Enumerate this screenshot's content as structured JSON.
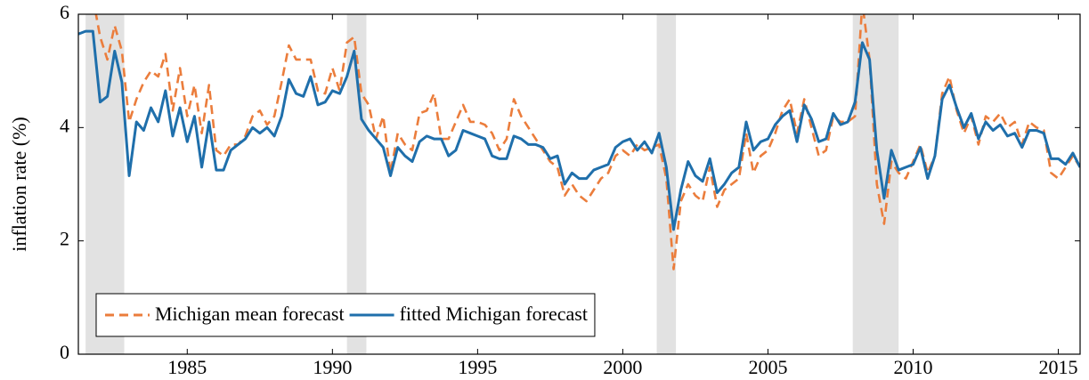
{
  "chart_data": {
    "type": "line",
    "ylabel": "inflation rate (%)",
    "xlim": [
      1981.25,
      2015.75
    ],
    "ylim": [
      0,
      6
    ],
    "xticks": [
      1985,
      1990,
      1995,
      2000,
      2005,
      2010,
      2015
    ],
    "yticks": [
      0,
      2,
      4,
      6
    ],
    "recessions": [
      [
        1981.5,
        1982.83
      ],
      [
        1990.5,
        1991.17
      ],
      [
        2001.17,
        2001.83
      ],
      [
        2007.92,
        2009.5
      ]
    ],
    "recession_color": "#e2e2e2",
    "legend": "lower left",
    "x": [
      1981.25,
      1981.5,
      1981.75,
      1982,
      1982.25,
      1982.5,
      1982.75,
      1983,
      1983.25,
      1983.5,
      1983.75,
      1984,
      1984.25,
      1984.5,
      1984.75,
      1985,
      1985.25,
      1985.5,
      1985.75,
      1986,
      1986.25,
      1986.5,
      1986.75,
      1987,
      1987.25,
      1987.5,
      1987.75,
      1988,
      1988.25,
      1988.5,
      1988.75,
      1989,
      1989.25,
      1989.5,
      1989.75,
      1990,
      1990.25,
      1990.5,
      1990.75,
      1991,
      1991.25,
      1991.5,
      1991.75,
      1992,
      1992.25,
      1992.5,
      1992.75,
      1993,
      1993.25,
      1993.5,
      1993.75,
      1994,
      1994.25,
      1994.5,
      1994.75,
      1995,
      1995.25,
      1995.5,
      1995.75,
      1996,
      1996.25,
      1996.5,
      1996.75,
      1997,
      1997.25,
      1997.5,
      1997.75,
      1998,
      1998.25,
      1998.5,
      1998.75,
      1999,
      1999.25,
      1999.5,
      1999.75,
      2000,
      2000.25,
      2000.5,
      2000.75,
      2001,
      2001.25,
      2001.5,
      2001.75,
      2002,
      2002.25,
      2002.5,
      2002.75,
      2003,
      2003.25,
      2003.5,
      2003.75,
      2004,
      2004.25,
      2004.5,
      2004.75,
      2005,
      2005.25,
      2005.5,
      2005.75,
      2006,
      2006.25,
      2006.5,
      2006.75,
      2007,
      2007.25,
      2007.5,
      2007.75,
      2008,
      2008.25,
      2008.5,
      2008.75,
      2009,
      2009.25,
      2009.5,
      2009.75,
      2010,
      2010.25,
      2010.5,
      2010.75,
      2011,
      2011.25,
      2011.5,
      2011.75,
      2012,
      2012.25,
      2012.5,
      2012.75,
      2013,
      2013.25,
      2013.5,
      2013.75,
      2014,
      2014.25,
      2014.5,
      2014.75,
      2015,
      2015.25,
      2015.5,
      2015.75
    ],
    "series": [
      {
        "name": "Michigan mean forecast",
        "color": "#eb7d3c",
        "dashed": true,
        "values": [
          6.6,
          6.8,
          6.3,
          5.6,
          5.2,
          5.8,
          5.35,
          4.1,
          4.5,
          4.8,
          5,
          4.9,
          5.3,
          4.3,
          5.05,
          4.2,
          4.75,
          3.9,
          4.75,
          3.6,
          3.5,
          3.7,
          3.7,
          3.85,
          4.2,
          4.3,
          4.05,
          4.2,
          4.8,
          5.45,
          5.2,
          5.2,
          5.2,
          4.65,
          4.6,
          5.05,
          4.65,
          5.5,
          5.6,
          4.6,
          4.4,
          3.8,
          4.2,
          3.2,
          3.9,
          3.7,
          3.6,
          4.25,
          4.3,
          4.6,
          3.8,
          3.8,
          4.1,
          4.4,
          4.1,
          4.1,
          4.05,
          3.9,
          3.6,
          3.8,
          4.5,
          4.2,
          4,
          3.8,
          3.6,
          3.4,
          3.3,
          2.8,
          3,
          2.8,
          2.7,
          2.9,
          3.1,
          3.2,
          3.5,
          3.6,
          3.5,
          3.7,
          3.6,
          3.65,
          3.7,
          3.1,
          1.5,
          2.7,
          3,
          2.8,
          2.7,
          3.3,
          2.6,
          2.9,
          3,
          3.1,
          3.9,
          3.2,
          3.5,
          3.6,
          3.9,
          4.3,
          4.5,
          3.9,
          4.5,
          4,
          3.5,
          3.6,
          4.2,
          4.1,
          4.1,
          4.2,
          6.2,
          5.2,
          3,
          2.3,
          3.4,
          3.2,
          3.1,
          3.4,
          3.7,
          3.2,
          3.5,
          4.6,
          4.9,
          4.3,
          3.9,
          4.2,
          3.7,
          4.2,
          4.1,
          4.25,
          4,
          4.1,
          3.7,
          4.1,
          4,
          3.95,
          3.2,
          3.1,
          3.3,
          3.5,
          3.3
        ]
      },
      {
        "name": "fitted Michigan forecast",
        "color": "#1f6fab",
        "dashed": false,
        "values": [
          5.65,
          5.7,
          5.7,
          4.45,
          4.55,
          5.35,
          4.8,
          3.15,
          4.1,
          3.95,
          4.35,
          4.1,
          4.65,
          3.85,
          4.35,
          3.75,
          4.2,
          3.3,
          4.1,
          3.25,
          3.25,
          3.6,
          3.7,
          3.8,
          4,
          3.9,
          4,
          3.85,
          4.2,
          4.85,
          4.6,
          4.55,
          4.9,
          4.4,
          4.45,
          4.65,
          4.6,
          4.9,
          5.35,
          4.15,
          3.95,
          3.8,
          3.65,
          3.15,
          3.65,
          3.5,
          3.4,
          3.75,
          3.85,
          3.8,
          3.8,
          3.5,
          3.6,
          3.95,
          3.9,
          3.85,
          3.8,
          3.5,
          3.45,
          3.45,
          3.85,
          3.8,
          3.7,
          3.7,
          3.65,
          3.45,
          3.5,
          3,
          3.2,
          3.1,
          3.1,
          3.25,
          3.3,
          3.35,
          3.65,
          3.75,
          3.8,
          3.6,
          3.75,
          3.55,
          3.9,
          3.3,
          2.2,
          2.9,
          3.4,
          3.15,
          3.05,
          3.45,
          2.85,
          3,
          3.2,
          3.3,
          4.1,
          3.6,
          3.75,
          3.8,
          4.05,
          4.2,
          4.3,
          3.75,
          4.4,
          4.15,
          3.75,
          3.8,
          4.25,
          4.05,
          4.1,
          4.45,
          5.5,
          5.2,
          3.6,
          2.75,
          3.6,
          3.25,
          3.3,
          3.35,
          3.65,
          3.1,
          3.5,
          4.5,
          4.75,
          4.35,
          4,
          4.25,
          3.8,
          4.1,
          3.95,
          4.05,
          3.85,
          3.9,
          3.65,
          3.95,
          3.95,
          3.9,
          3.45,
          3.45,
          3.35,
          3.55,
          3.3
        ]
      }
    ]
  }
}
